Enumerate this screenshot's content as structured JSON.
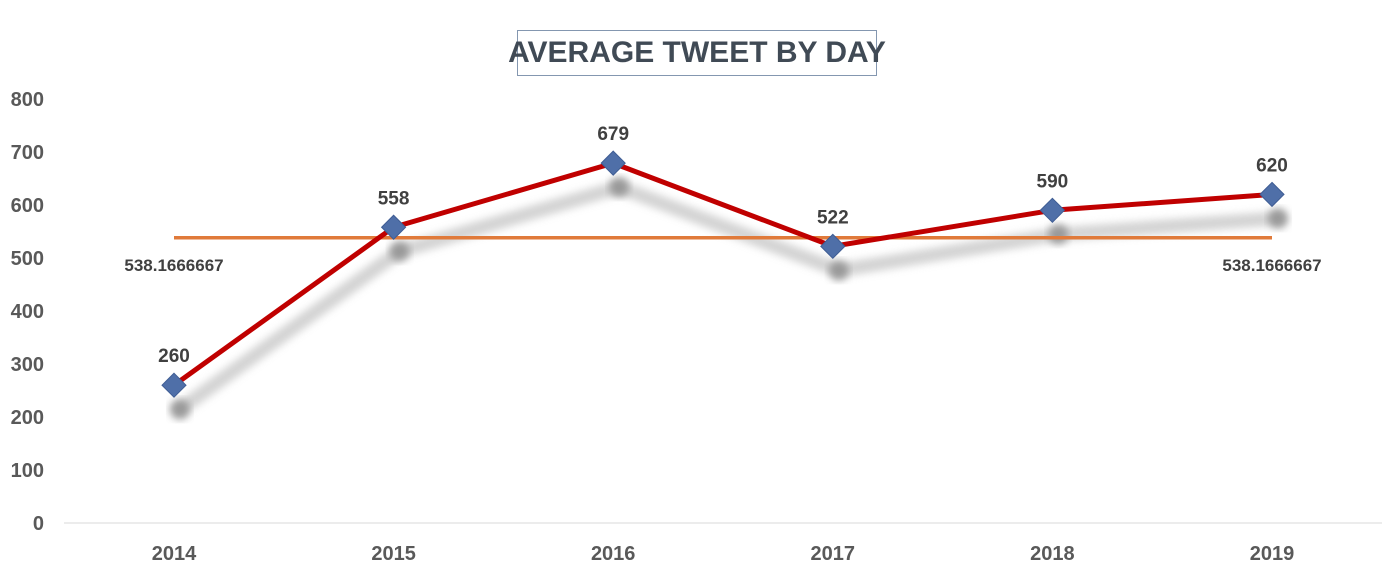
{
  "chart_data": {
    "type": "line",
    "title": "AVERAGE TWEET BY DAY",
    "categories": [
      "2014",
      "2015",
      "2016",
      "2017",
      "2018",
      "2019"
    ],
    "series": [
      {
        "values": [
          260,
          558,
          679,
          522,
          590,
          620
        ],
        "data_labels": [
          "260",
          "558",
          "679",
          "522",
          "590",
          "620"
        ],
        "color": "#c00000",
        "marker": "diamond",
        "marker_color": "#4f6fa8"
      },
      {
        "values": [
          538.1666667,
          538.1666667,
          538.1666667,
          538.1666667,
          538.1666667,
          538.1666667
        ],
        "data_labels": [
          "538.1666667",
          "538.1666667"
        ],
        "color": "#e07a3a"
      }
    ],
    "y_ticks": [
      "0",
      "100",
      "200",
      "300",
      "400",
      "500",
      "600",
      "700",
      "800"
    ],
    "ylim": [
      0,
      800
    ],
    "xlabel": "",
    "ylabel": "",
    "grid": false,
    "legend": "none"
  }
}
